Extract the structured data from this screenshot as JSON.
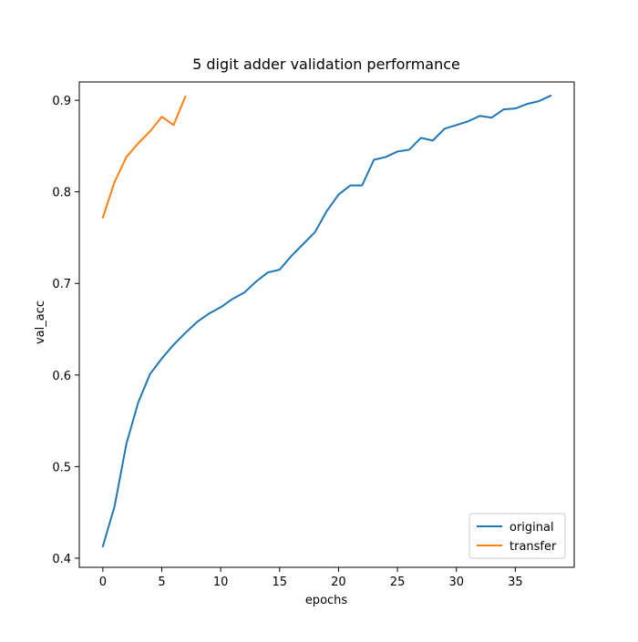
{
  "chart_data": {
    "type": "line",
    "title": "5 digit adder validation performance",
    "xlabel": "epochs",
    "ylabel": "val_acc",
    "xlim": [
      -2.0,
      40.0
    ],
    "ylim": [
      0.39,
      0.92
    ],
    "xticks": [
      0,
      5,
      10,
      15,
      20,
      25,
      30,
      35
    ],
    "yticks": [
      0.4,
      0.5,
      0.6,
      0.7,
      0.8,
      0.9
    ],
    "xtick_labels": [
      "0",
      "5",
      "10",
      "15",
      "20",
      "25",
      "30",
      "35"
    ],
    "ytick_labels": [
      "0.4",
      "0.5",
      "0.6",
      "0.7",
      "0.8",
      "0.9"
    ],
    "grid": false,
    "legend_position": "lower-right",
    "series": [
      {
        "name": "original",
        "color": "#1f77b4",
        "x": [
          0,
          1,
          2,
          3,
          4,
          5,
          6,
          7,
          8,
          9,
          10,
          11,
          12,
          13,
          14,
          15,
          16,
          17,
          18,
          19,
          20,
          21,
          22,
          23,
          24,
          25,
          26,
          27,
          28,
          29,
          30,
          31,
          32,
          33,
          34,
          35,
          36,
          37,
          38
        ],
        "values": [
          0.413,
          0.457,
          0.525,
          0.57,
          0.601,
          0.618,
          0.633,
          0.646,
          0.658,
          0.667,
          0.674,
          0.683,
          0.69,
          0.702,
          0.712,
          0.715,
          0.73,
          0.743,
          0.756,
          0.779,
          0.797,
          0.807,
          0.807,
          0.835,
          0.838,
          0.844,
          0.846,
          0.859,
          0.856,
          0.869,
          0.873,
          0.877,
          0.883,
          0.881,
          0.89,
          0.891,
          0.896,
          0.899,
          0.905
        ]
      },
      {
        "name": "transfer",
        "color": "#ff7f0e",
        "x": [
          0,
          1,
          2,
          3,
          4,
          5,
          6,
          7
        ],
        "values": [
          0.772,
          0.811,
          0.838,
          0.853,
          0.866,
          0.882,
          0.873,
          0.904
        ]
      }
    ]
  }
}
